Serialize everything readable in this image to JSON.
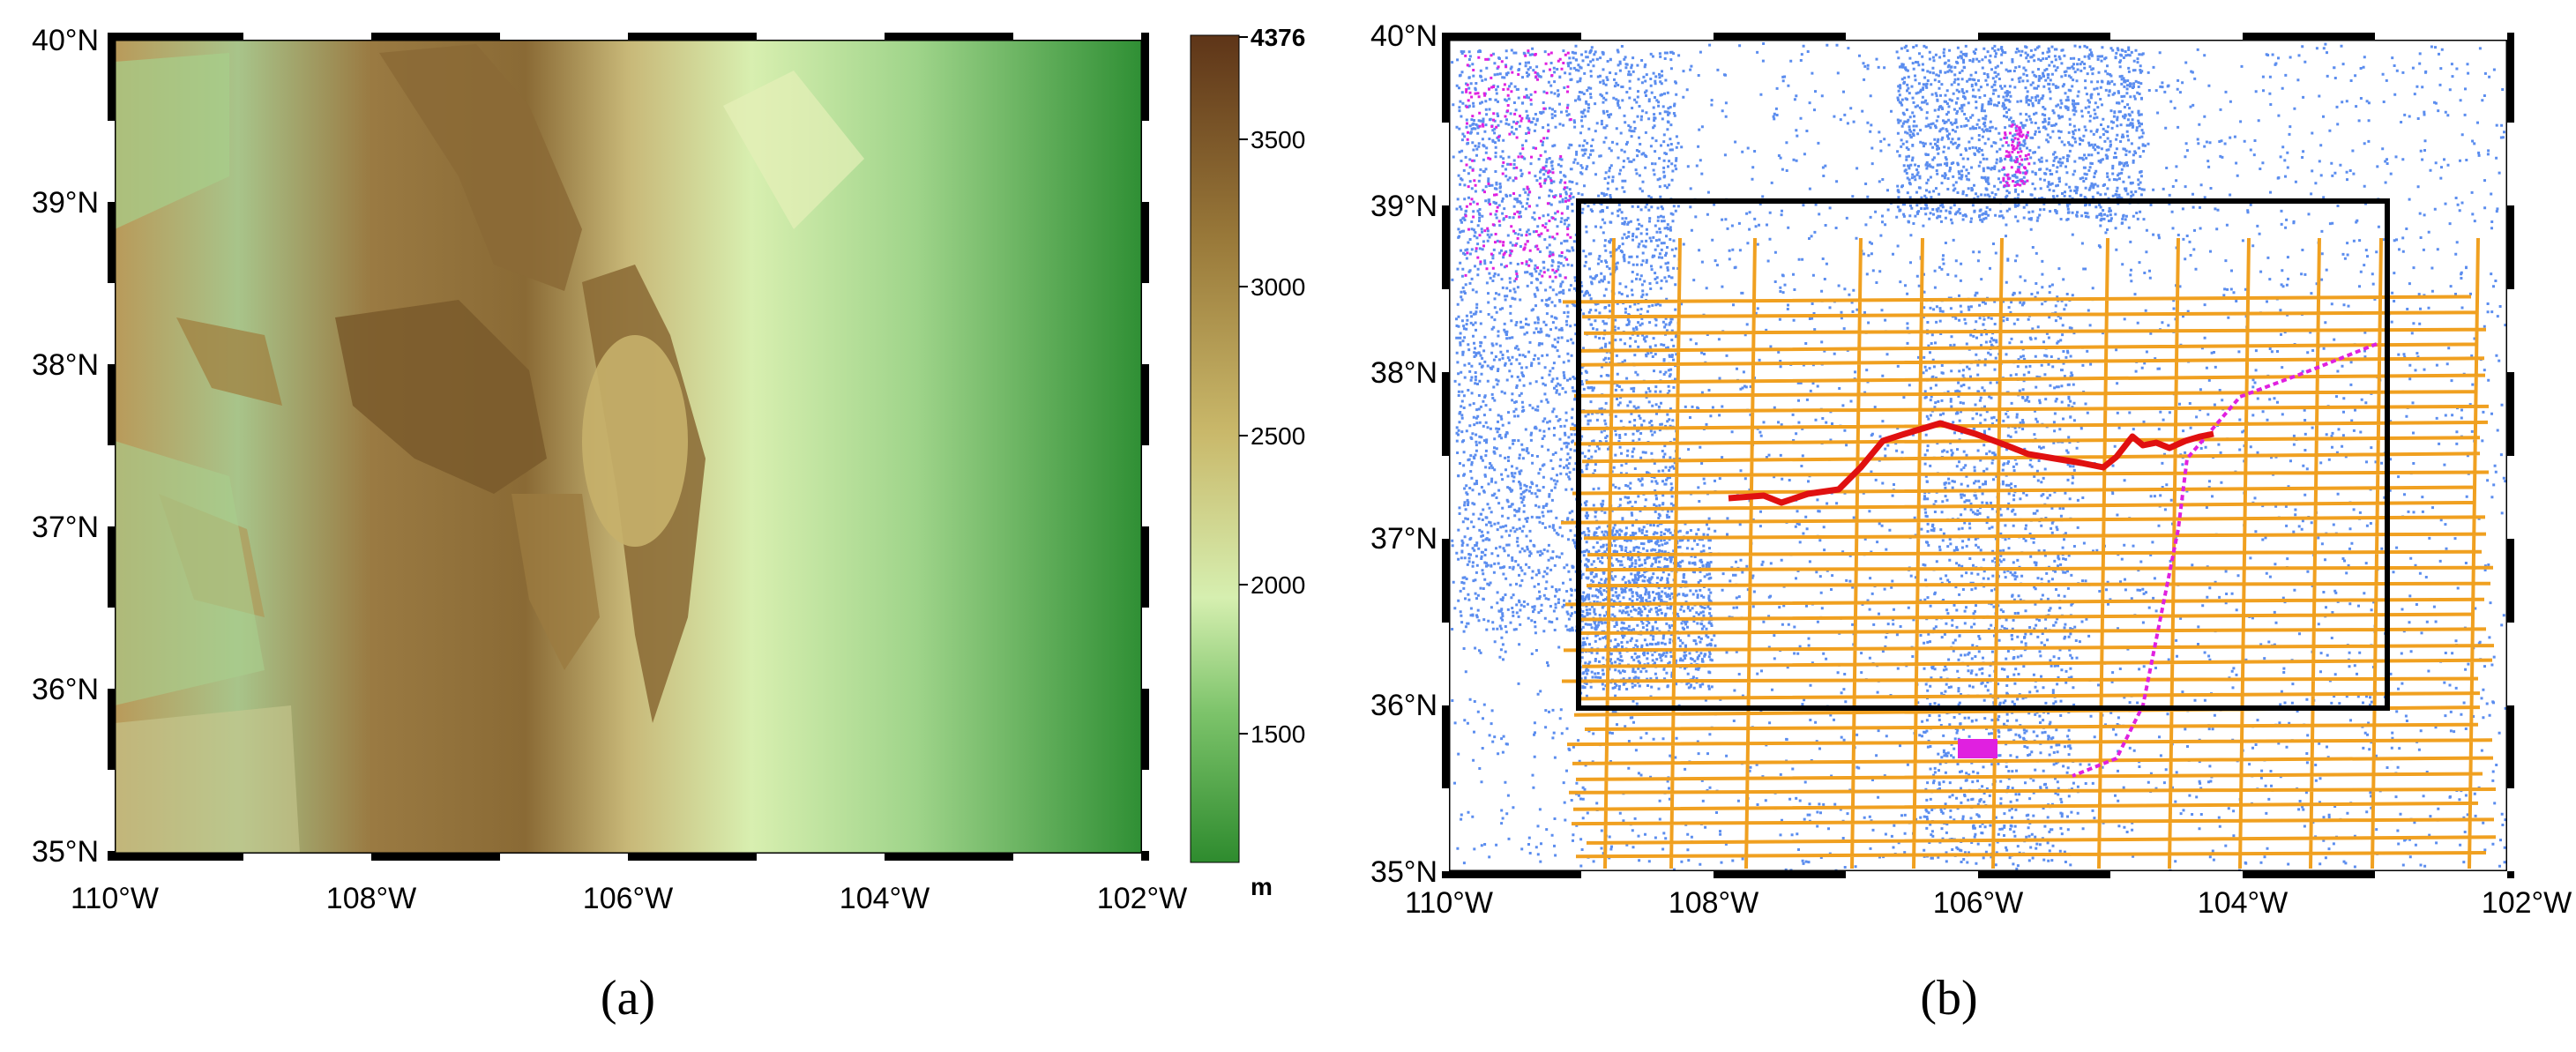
{
  "panel_a": {
    "caption": "(a)",
    "lat_labels": [
      "40°N",
      "39°N",
      "38°N",
      "37°N",
      "36°N",
      "35°N"
    ],
    "lon_labels": [
      "110°W",
      "108°W",
      "106°W",
      "104°W",
      "102°W"
    ],
    "colorbar": {
      "max_label": "4376",
      "tick_labels": [
        "3500",
        "3000",
        "2500",
        "2000",
        "1500"
      ],
      "unit": "m",
      "colors": [
        "#2e8b2e",
        "#7cc36a",
        "#d6efb0",
        "#c9b86a",
        "#9a7a3a",
        "#6b3f1c"
      ]
    }
  },
  "panel_b": {
    "caption": "(b)",
    "lat_labels": [
      "40°N",
      "39°N",
      "38°N",
      "37°N",
      "36°N",
      "35°N"
    ],
    "lon_labels": [
      "110°W",
      "108°W",
      "106°W",
      "104°W",
      "102°W"
    ],
    "colors": {
      "points": "#5b8def",
      "grid_lines": "#f0a020",
      "red_track": "#e01010",
      "magenta": "#e020e0",
      "box": "#000000"
    }
  }
}
